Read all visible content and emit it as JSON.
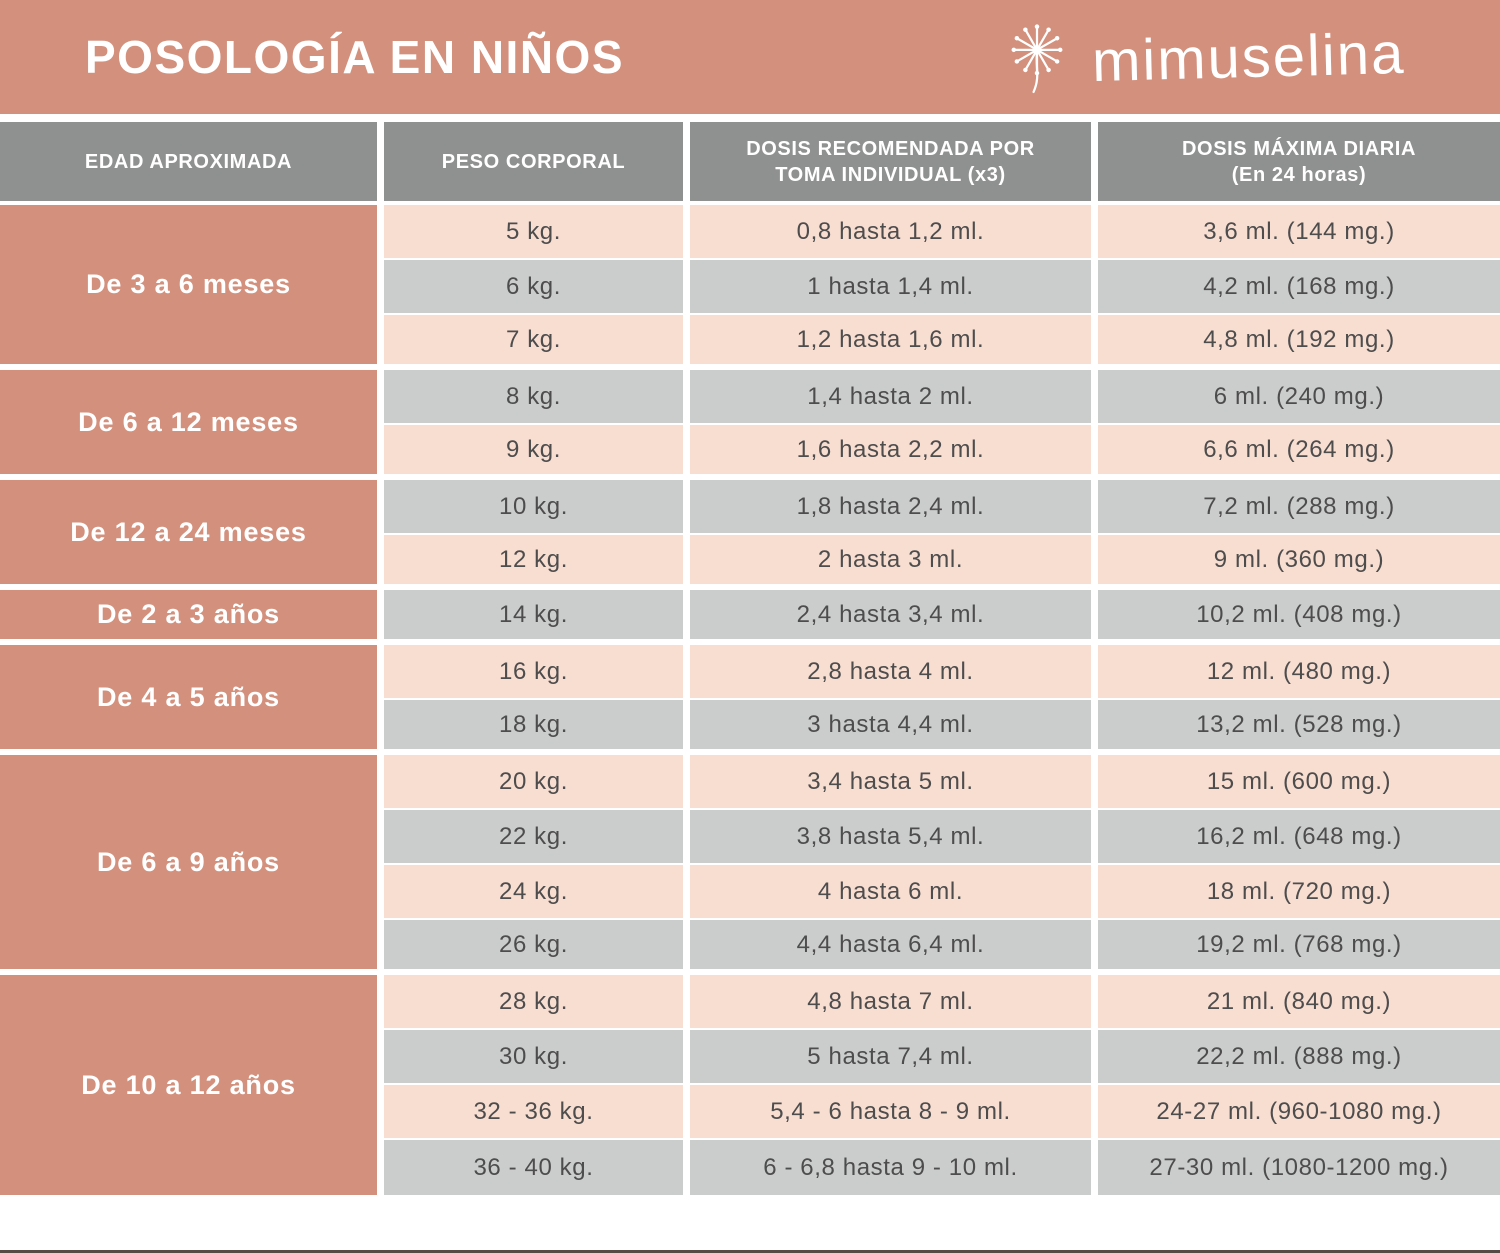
{
  "banner": {
    "title": "POSOLOGÍA EN NIÑOS",
    "brand": "mimuselina"
  },
  "colors": {
    "banner_salmon": "#d3907d",
    "row_pink": "#f8ddd1",
    "row_gray": "#cbcdcc",
    "header_gray": "#8f9090",
    "text_gray": "#4d4d4d",
    "bottom_line": "#564a44"
  },
  "table": {
    "headers": [
      {
        "lines": [
          "EDAD APROXIMADA"
        ]
      },
      {
        "lines": [
          "PESO CORPORAL"
        ]
      },
      {
        "lines": [
          "DOSIS RECOMENDADA POR",
          "TOMA INDIVIDUAL (x3)"
        ]
      },
      {
        "lines": [
          "DOSIS MÁXIMA DIARIA",
          "(En 24 horas)"
        ]
      }
    ],
    "groups": [
      {
        "age": "De 3 a 6 meses",
        "rows": [
          {
            "peso": "5 kg.",
            "dosis": "0,8 hasta 1,2 ml.",
            "maxima": "3,6 ml. (144 mg.)"
          },
          {
            "peso": "6 kg.",
            "dosis": "1 hasta 1,4 ml.",
            "maxima": "4,2 ml. (168 mg.)"
          },
          {
            "peso": "7 kg.",
            "dosis": "1,2 hasta 1,6 ml.",
            "maxima": "4,8 ml. (192 mg.)"
          }
        ]
      },
      {
        "age": "De 6 a 12 meses",
        "rows": [
          {
            "peso": "8 kg.",
            "dosis": "1,4 hasta 2 ml.",
            "maxima": "6 ml. (240 mg.)"
          },
          {
            "peso": "9 kg.",
            "dosis": "1,6 hasta 2,2 ml.",
            "maxima": "6,6 ml. (264 mg.)"
          }
        ]
      },
      {
        "age": "De 12 a 24 meses",
        "rows": [
          {
            "peso": "10 kg.",
            "dosis": "1,8 hasta 2,4 ml.",
            "maxima": "7,2 ml. (288 mg.)"
          },
          {
            "peso": "12 kg.",
            "dosis": "2 hasta 3 ml.",
            "maxima": "9 ml. (360 mg.)"
          }
        ]
      },
      {
        "age": "De 2 a 3 años",
        "rows": [
          {
            "peso": "14 kg.",
            "dosis": "2,4 hasta 3,4 ml.",
            "maxima": "10,2 ml. (408 mg.)"
          }
        ]
      },
      {
        "age": "De 4 a 5 años",
        "rows": [
          {
            "peso": "16 kg.",
            "dosis": "2,8 hasta 4 ml.",
            "maxima": "12 ml. (480 mg.)"
          },
          {
            "peso": "18 kg.",
            "dosis": "3 hasta 4,4 ml.",
            "maxima": "13,2 ml. (528 mg.)"
          }
        ]
      },
      {
        "age": "De 6 a 9 años",
        "rows": [
          {
            "peso": "20 kg.",
            "dosis": "3,4 hasta 5 ml.",
            "maxima": "15 ml. (600 mg.)"
          },
          {
            "peso": "22 kg.",
            "dosis": "3,8 hasta 5,4 ml.",
            "maxima": "16,2 ml. (648 mg.)"
          },
          {
            "peso": "24 kg.",
            "dosis": "4 hasta 6 ml.",
            "maxima": "18 ml. (720 mg.)"
          },
          {
            "peso": "26 kg.",
            "dosis": "4,4 hasta 6,4 ml.",
            "maxima": "19,2 ml. (768 mg.)"
          }
        ]
      },
      {
        "age": "De 10 a 12 años",
        "rows": [
          {
            "peso": "28 kg.",
            "dosis": "4,8 hasta 7 ml.",
            "maxima": "21 ml. (840 mg.)"
          },
          {
            "peso": "30 kg.",
            "dosis": "5 hasta 7,4 ml.",
            "maxima": "22,2 ml. (888 mg.)"
          },
          {
            "peso": "32 - 36 kg.",
            "dosis": "5,4 - 6 hasta 8 - 9 ml.",
            "maxima": "24-27 ml. (960-1080 mg.)"
          },
          {
            "peso": "36 - 40 kg.",
            "dosis": "6 - 6,8 hasta 9 - 10 ml.",
            "maxima": "27-30 ml. (1080-1200 mg.)"
          }
        ]
      }
    ]
  }
}
